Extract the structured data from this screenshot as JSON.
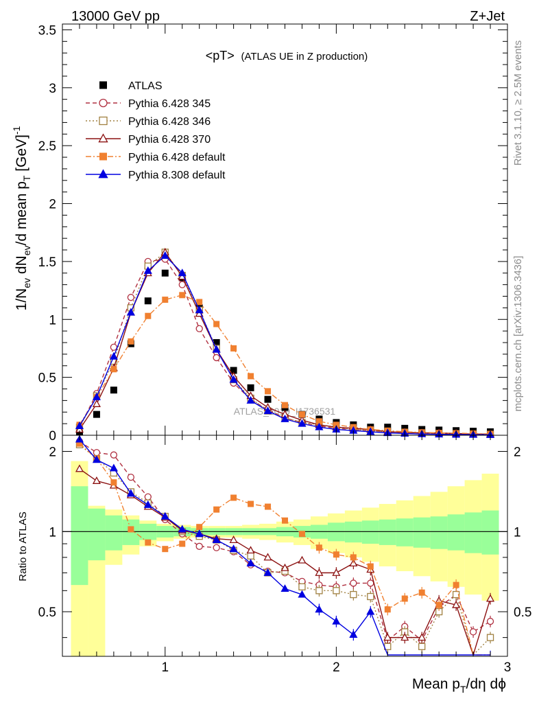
{
  "header": {
    "energy_label": "13000 GeV pp",
    "process_label": "Z+Jet",
    "plot_title_main": "<pT>",
    "plot_title_sub": "(ATLAS UE in Z production)",
    "watermark": "ATLAS_2019_I1736531",
    "side_top": "Rivet 3.1.10, ≥ 2.5M events",
    "side_bottom": "mcplots.cern.ch [arXiv:1306.3436]"
  },
  "chart_data": [
    {
      "type": "line",
      "panel": "main",
      "ylabel": "1/Nev dNev/d mean pT [GeV]-1",
      "ylim": [
        0,
        3.55
      ],
      "xlim": [
        0.4,
        3.0
      ],
      "y_ticks": [
        "0",
        "0.5",
        "1",
        "1.5",
        "2",
        "2.5",
        "3",
        "3.5"
      ],
      "x": [
        0.5,
        0.6,
        0.7,
        0.8,
        0.9,
        1.0,
        1.1,
        1.2,
        1.3,
        1.4,
        1.5,
        1.6,
        1.7,
        1.8,
        1.9,
        2.0,
        2.1,
        2.2,
        2.3,
        2.4,
        2.5,
        2.6,
        2.7,
        2.8,
        2.9
      ],
      "legend_position": "top-left",
      "series": [
        {
          "name": "ATLAS",
          "color": "#000000",
          "marker": "square-filled",
          "values": [
            0.03,
            0.18,
            0.39,
            0.79,
            1.16,
            1.4,
            1.36,
            1.1,
            0.8,
            0.56,
            0.41,
            0.31,
            0.24,
            0.18,
            0.14,
            0.11,
            0.09,
            0.07,
            0.07,
            0.06,
            0.05,
            0.045,
            0.04,
            0.035,
            0.03
          ]
        },
        {
          "name": "Pythia 6.428 345",
          "color": "#b03040",
          "marker": "circle-open",
          "dash": "6,4",
          "values": [
            0.07,
            0.36,
            0.76,
            1.19,
            1.5,
            1.52,
            1.3,
            0.92,
            0.67,
            0.45,
            0.31,
            0.22,
            0.15,
            0.11,
            0.08,
            0.06,
            0.05,
            0.04,
            0.03,
            0.025,
            0.02,
            0.015,
            0.012,
            0.01,
            0.008
          ]
        },
        {
          "name": "Pythia 6.428 346",
          "color": "#a08040",
          "marker": "square-open",
          "dash": "2,3",
          "values": [
            0.07,
            0.34,
            0.64,
            1.1,
            1.46,
            1.58,
            1.38,
            1.08,
            0.75,
            0.48,
            0.32,
            0.21,
            0.15,
            0.11,
            0.09,
            0.07,
            0.05,
            0.04,
            0.03,
            0.025,
            0.02,
            0.015,
            0.012,
            0.01,
            0.008
          ]
        },
        {
          "name": "Pythia 6.428 370",
          "color": "#8b1010",
          "marker": "triangle-open",
          "dash": "",
          "values": [
            0.05,
            0.27,
            0.58,
            1.06,
            1.4,
            1.58,
            1.37,
            1.05,
            0.74,
            0.51,
            0.34,
            0.24,
            0.18,
            0.13,
            0.09,
            0.07,
            0.06,
            0.05,
            0.03,
            0.025,
            0.02,
            0.02,
            0.015,
            0.01,
            0.01
          ]
        },
        {
          "name": "Pythia 6.428 default",
          "color": "#f08030",
          "marker": "square-filled",
          "dash": "8,3,2,3",
          "values": [
            0.09,
            0.33,
            0.57,
            0.81,
            1.03,
            1.17,
            1.21,
            1.15,
            0.96,
            0.75,
            0.51,
            0.38,
            0.26,
            0.18,
            0.12,
            0.09,
            0.07,
            0.05,
            0.04,
            0.03,
            0.025,
            0.02,
            0.018,
            0.015,
            0.012
          ]
        },
        {
          "name": "Pythia 8.308 default",
          "color": "#0000e0",
          "marker": "triangle-filled",
          "dash": "",
          "values": [
            0.08,
            0.33,
            0.68,
            1.06,
            1.42,
            1.55,
            1.4,
            1.08,
            0.74,
            0.48,
            0.3,
            0.21,
            0.14,
            0.1,
            0.07,
            0.05,
            0.04,
            0.03,
            0.02,
            0.015,
            0.01,
            0.008,
            0.006,
            0.005,
            0.004
          ]
        }
      ]
    },
    {
      "type": "line",
      "panel": "ratio",
      "ylabel": "Ratio to ATLAS",
      "ylim": [
        0.34,
        2.3
      ],
      "xlim": [
        0.4,
        3.0
      ],
      "y_ticks": [
        "0.5",
        "1",
        "2"
      ],
      "x_ticks": [
        "1",
        "2",
        "3"
      ],
      "xlabel": "Mean pT/dη dϕ",
      "x": [
        0.5,
        0.6,
        0.7,
        0.8,
        0.9,
        1.0,
        1.1,
        1.2,
        1.3,
        1.4,
        1.5,
        1.6,
        1.7,
        1.8,
        1.9,
        2.0,
        2.1,
        2.2,
        2.3,
        2.4,
        2.5,
        2.6,
        2.7,
        2.8,
        2.9
      ],
      "band_inner": {
        "color": "#99ff99",
        "lo": [
          0.63,
          0.78,
          0.85,
          0.89,
          0.93,
          0.95,
          0.96,
          0.97,
          0.97,
          0.97,
          0.97,
          0.97,
          0.96,
          0.95,
          0.94,
          0.92,
          0.91,
          0.9,
          0.89,
          0.88,
          0.87,
          0.86,
          0.85,
          0.83,
          0.82
        ],
        "hi": [
          1.48,
          1.22,
          1.15,
          1.11,
          1.07,
          1.05,
          1.04,
          1.03,
          1.03,
          1.03,
          1.03,
          1.03,
          1.04,
          1.05,
          1.06,
          1.08,
          1.09,
          1.1,
          1.11,
          1.12,
          1.13,
          1.14,
          1.16,
          1.18,
          1.2
        ]
      },
      "band_outer": {
        "color": "#ffff99",
        "lo": [
          0.3,
          0.3,
          0.75,
          0.82,
          0.88,
          0.92,
          0.94,
          0.95,
          0.95,
          0.95,
          0.94,
          0.93,
          0.91,
          0.89,
          0.86,
          0.83,
          0.8,
          0.77,
          0.74,
          0.71,
          0.68,
          0.65,
          0.62,
          0.58,
          0.55
        ],
        "hi": [
          1.84,
          1.25,
          1.21,
          1.15,
          1.1,
          1.07,
          1.06,
          1.05,
          1.05,
          1.05,
          1.06,
          1.07,
          1.09,
          1.11,
          1.14,
          1.17,
          1.2,
          1.23,
          1.27,
          1.31,
          1.36,
          1.41,
          1.48,
          1.56,
          1.65
        ]
      },
      "series": [
        {
          "name": "Pythia 6.428 345",
          "color": "#b03040",
          "marker": "circle-open",
          "dash": "6,4",
          "values": [
            2.18,
            1.98,
            1.94,
            1.6,
            1.35,
            1.11,
            0.98,
            0.88,
            0.87,
            0.84,
            0.75,
            0.71,
            0.7,
            0.65,
            0.63,
            0.62,
            0.64,
            0.64,
            0.39,
            0.44,
            0.39,
            0.52,
            0.58,
            0.42,
            0.46
          ]
        },
        {
          "name": "Pythia 6.428 346",
          "color": "#a08040",
          "marker": "square-open",
          "dash": "2,3",
          "values": [
            2.12,
            1.88,
            1.66,
            1.41,
            1.28,
            1.14,
            1.0,
            0.96,
            0.93,
            0.85,
            0.81,
            0.7,
            0.71,
            0.62,
            0.6,
            0.6,
            0.58,
            0.57,
            0.37,
            0.42,
            0.37,
            0.5,
            0.58,
            0.31,
            0.4
          ]
        },
        {
          "name": "Pythia 6.428 370",
          "color": "#8b1010",
          "marker": "triangle-open",
          "dash": "",
          "values": [
            1.72,
            1.55,
            1.49,
            1.37,
            1.24,
            1.13,
            1.01,
            0.98,
            0.94,
            0.93,
            0.85,
            0.8,
            0.73,
            0.78,
            0.7,
            0.7,
            0.76,
            0.72,
            0.4,
            0.4,
            0.4,
            0.55,
            0.53,
            0.31,
            0.56
          ]
        },
        {
          "name": "Pythia 6.428 default",
          "color": "#f08030",
          "marker": "square-filled",
          "dash": "8,3,2,3",
          "values": [
            2.14,
            1.88,
            1.53,
            1.02,
            0.91,
            0.86,
            0.9,
            1.04,
            1.21,
            1.34,
            1.27,
            1.24,
            1.1,
            0.98,
            0.87,
            0.82,
            0.8,
            0.74,
            0.51,
            0.56,
            0.59,
            0.53,
            0.63,
            0.31,
            0.31
          ]
        },
        {
          "name": "Pythia 8.308 default",
          "color": "#0000e0",
          "marker": "triangle-filled",
          "dash": "",
          "values": [
            2.22,
            1.86,
            1.73,
            1.39,
            1.26,
            1.14,
            1.02,
            0.98,
            0.93,
            0.86,
            0.76,
            0.7,
            0.61,
            0.58,
            0.51,
            0.46,
            0.41,
            0.5,
            0.31,
            0.31,
            0.31,
            0.31,
            0.31,
            0.31,
            0.34
          ]
        }
      ]
    }
  ]
}
